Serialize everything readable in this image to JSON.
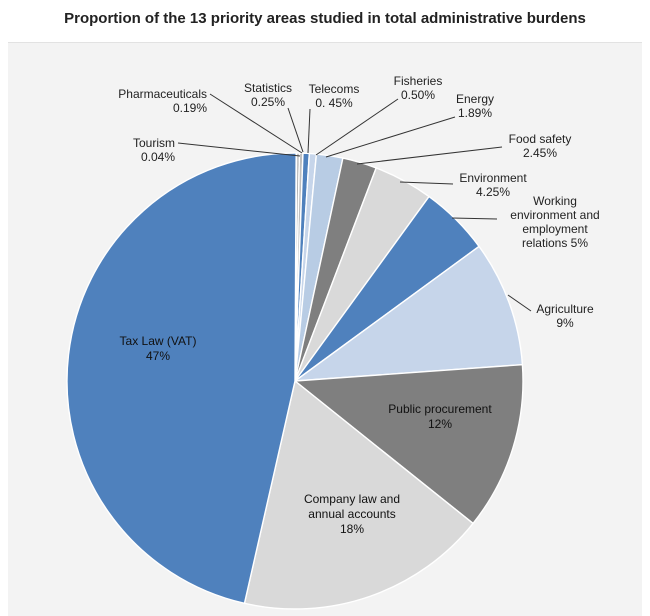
{
  "chart_data": {
    "type": "pie",
    "title": "Proportion of the 13 priority areas studied in total administrative burdens",
    "slices": [
      {
        "label": "Tourism",
        "value_text": "0.04%",
        "value": 0.04,
        "color": "#d9d9d9"
      },
      {
        "label": "Pharmaceuticals",
        "value_text": "0.19%",
        "value": 0.19,
        "color": "#a6a6a6"
      },
      {
        "label": "Statistics",
        "value_text": "0.25%",
        "value": 0.25,
        "color": "#bfbfbf"
      },
      {
        "label": "Telecoms",
        "value_text": "0. 45%",
        "value": 0.45,
        "color": "#4f81bd"
      },
      {
        "label": "Fisheries",
        "value_text": "0.50%",
        "value": 0.5,
        "color": "#c6d5ea"
      },
      {
        "label": "Energy",
        "value_text": "1.89%",
        "value": 1.89,
        "color": "#b8cce4"
      },
      {
        "label": "Food safety",
        "value_text": "2.45%",
        "value": 2.45,
        "color": "#7f7f7f"
      },
      {
        "label": "Environment",
        "value_text": "4.25%",
        "value": 4.25,
        "color": "#d9d9d9"
      },
      {
        "label": "Working environment and employment relations",
        "value_text": "5%",
        "value": 5,
        "color": "#4f81bd"
      },
      {
        "label": "Agriculture",
        "value_text": "9%",
        "value": 9,
        "color": "#c6d5ea"
      },
      {
        "label": "Public procurement",
        "value_text": "12%",
        "value": 12,
        "color": "#7f7f7f"
      },
      {
        "label": "Company law and annual accounts",
        "value_text": "18%",
        "value": 18,
        "color": "#d9d9d9"
      },
      {
        "label": "Tax Law (VAT)",
        "value_text": "47%",
        "value": 47,
        "color": "#4f81bd"
      }
    ]
  }
}
